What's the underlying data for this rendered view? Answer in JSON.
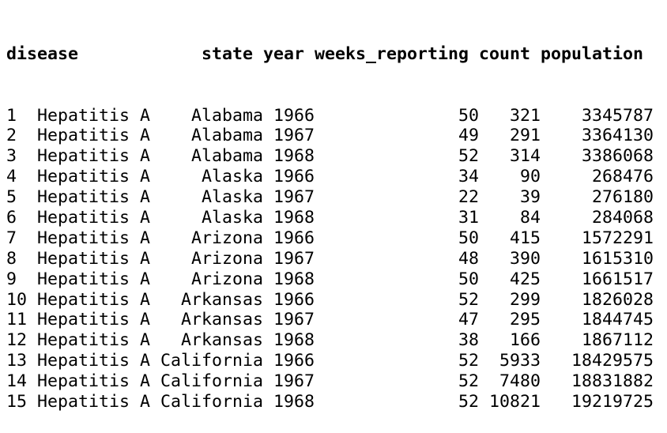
{
  "table": {
    "columns": [
      "disease",
      "state",
      "year",
      "weeks_reporting",
      "count",
      "population"
    ],
    "rows": [
      {
        "index": "1",
        "disease": "Hepatitis A",
        "state": "Alabama",
        "year": "1966",
        "weeks_reporting": "50",
        "count": "321",
        "population": "3345787"
      },
      {
        "index": "2",
        "disease": "Hepatitis A",
        "state": "Alabama",
        "year": "1967",
        "weeks_reporting": "49",
        "count": "291",
        "population": "3364130"
      },
      {
        "index": "3",
        "disease": "Hepatitis A",
        "state": "Alabama",
        "year": "1968",
        "weeks_reporting": "52",
        "count": "314",
        "population": "3386068"
      },
      {
        "index": "4",
        "disease": "Hepatitis A",
        "state": "Alaska",
        "year": "1966",
        "weeks_reporting": "34",
        "count": "90",
        "population": "268476"
      },
      {
        "index": "5",
        "disease": "Hepatitis A",
        "state": "Alaska",
        "year": "1967",
        "weeks_reporting": "22",
        "count": "39",
        "population": "276180"
      },
      {
        "index": "6",
        "disease": "Hepatitis A",
        "state": "Alaska",
        "year": "1968",
        "weeks_reporting": "31",
        "count": "84",
        "population": "284068"
      },
      {
        "index": "7",
        "disease": "Hepatitis A",
        "state": "Arizona",
        "year": "1966",
        "weeks_reporting": "50",
        "count": "415",
        "population": "1572291"
      },
      {
        "index": "8",
        "disease": "Hepatitis A",
        "state": "Arizona",
        "year": "1967",
        "weeks_reporting": "48",
        "count": "390",
        "population": "1615310"
      },
      {
        "index": "9",
        "disease": "Hepatitis A",
        "state": "Arizona",
        "year": "1968",
        "weeks_reporting": "50",
        "count": "425",
        "population": "1661517"
      },
      {
        "index": "10",
        "disease": "Hepatitis A",
        "state": "Arkansas",
        "year": "1966",
        "weeks_reporting": "52",
        "count": "299",
        "population": "1826028"
      },
      {
        "index": "11",
        "disease": "Hepatitis A",
        "state": "Arkansas",
        "year": "1967",
        "weeks_reporting": "47",
        "count": "295",
        "population": "1844745"
      },
      {
        "index": "12",
        "disease": "Hepatitis A",
        "state": "Arkansas",
        "year": "1968",
        "weeks_reporting": "38",
        "count": "166",
        "population": "1867112"
      },
      {
        "index": "13",
        "disease": "Hepatitis A",
        "state": "California",
        "year": "1966",
        "weeks_reporting": "52",
        "count": "5933",
        "population": "18429575"
      },
      {
        "index": "14",
        "disease": "Hepatitis A",
        "state": "California",
        "year": "1967",
        "weeks_reporting": "52",
        "count": "7480",
        "population": "18831882"
      },
      {
        "index": "15",
        "disease": "Hepatitis A",
        "state": "California",
        "year": "1968",
        "weeks_reporting": "52",
        "count": "10821",
        "population": "19219725"
      }
    ]
  }
}
